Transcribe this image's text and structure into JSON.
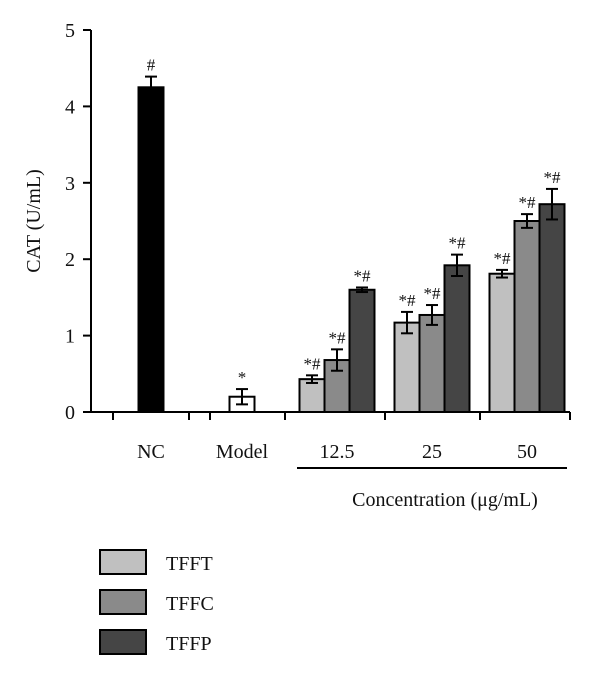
{
  "chart_data": {
    "type": "bar",
    "ylabel": "CAT (U/mL)",
    "ylim": [
      0,
      5
    ],
    "yticks": [
      0,
      1,
      2,
      3,
      4,
      5
    ],
    "grid": false,
    "groups": [
      {
        "label": "NC"
      },
      {
        "label": "Model"
      },
      {
        "label": "12.5"
      },
      {
        "label": "25"
      },
      {
        "label": "50"
      }
    ],
    "concentration_label": "Concentration (μg/mL)",
    "controls": [
      {
        "group": "NC",
        "value": 4.25,
        "error": 0.14,
        "color": "#000000",
        "annotation": "#"
      },
      {
        "group": "Model",
        "value": 0.2,
        "error": 0.1,
        "color": "#ffffff",
        "annotation": "*"
      }
    ],
    "series": [
      {
        "name": "TFFT",
        "color": "#c0c0c0",
        "values": [
          0.43,
          1.17,
          1.81
        ],
        "errors": [
          0.05,
          0.14,
          0.05
        ],
        "annotations": [
          "*#",
          "*#",
          "*#"
        ]
      },
      {
        "name": "TFFC",
        "color": "#8a8a8a",
        "values": [
          0.68,
          1.27,
          2.5
        ],
        "errors": [
          0.14,
          0.13,
          0.09
        ],
        "annotations": [
          "*#",
          "*#",
          "*#"
        ]
      },
      {
        "name": "TFFP",
        "color": "#454545",
        "values": [
          1.6,
          1.92,
          2.72
        ],
        "errors": [
          0.03,
          0.14,
          0.2
        ],
        "annotations": [
          "*#",
          "*#",
          "*#"
        ]
      }
    ],
    "concentration_groups": [
      "12.5",
      "25",
      "50"
    ],
    "legend_position": "bottom-left"
  }
}
